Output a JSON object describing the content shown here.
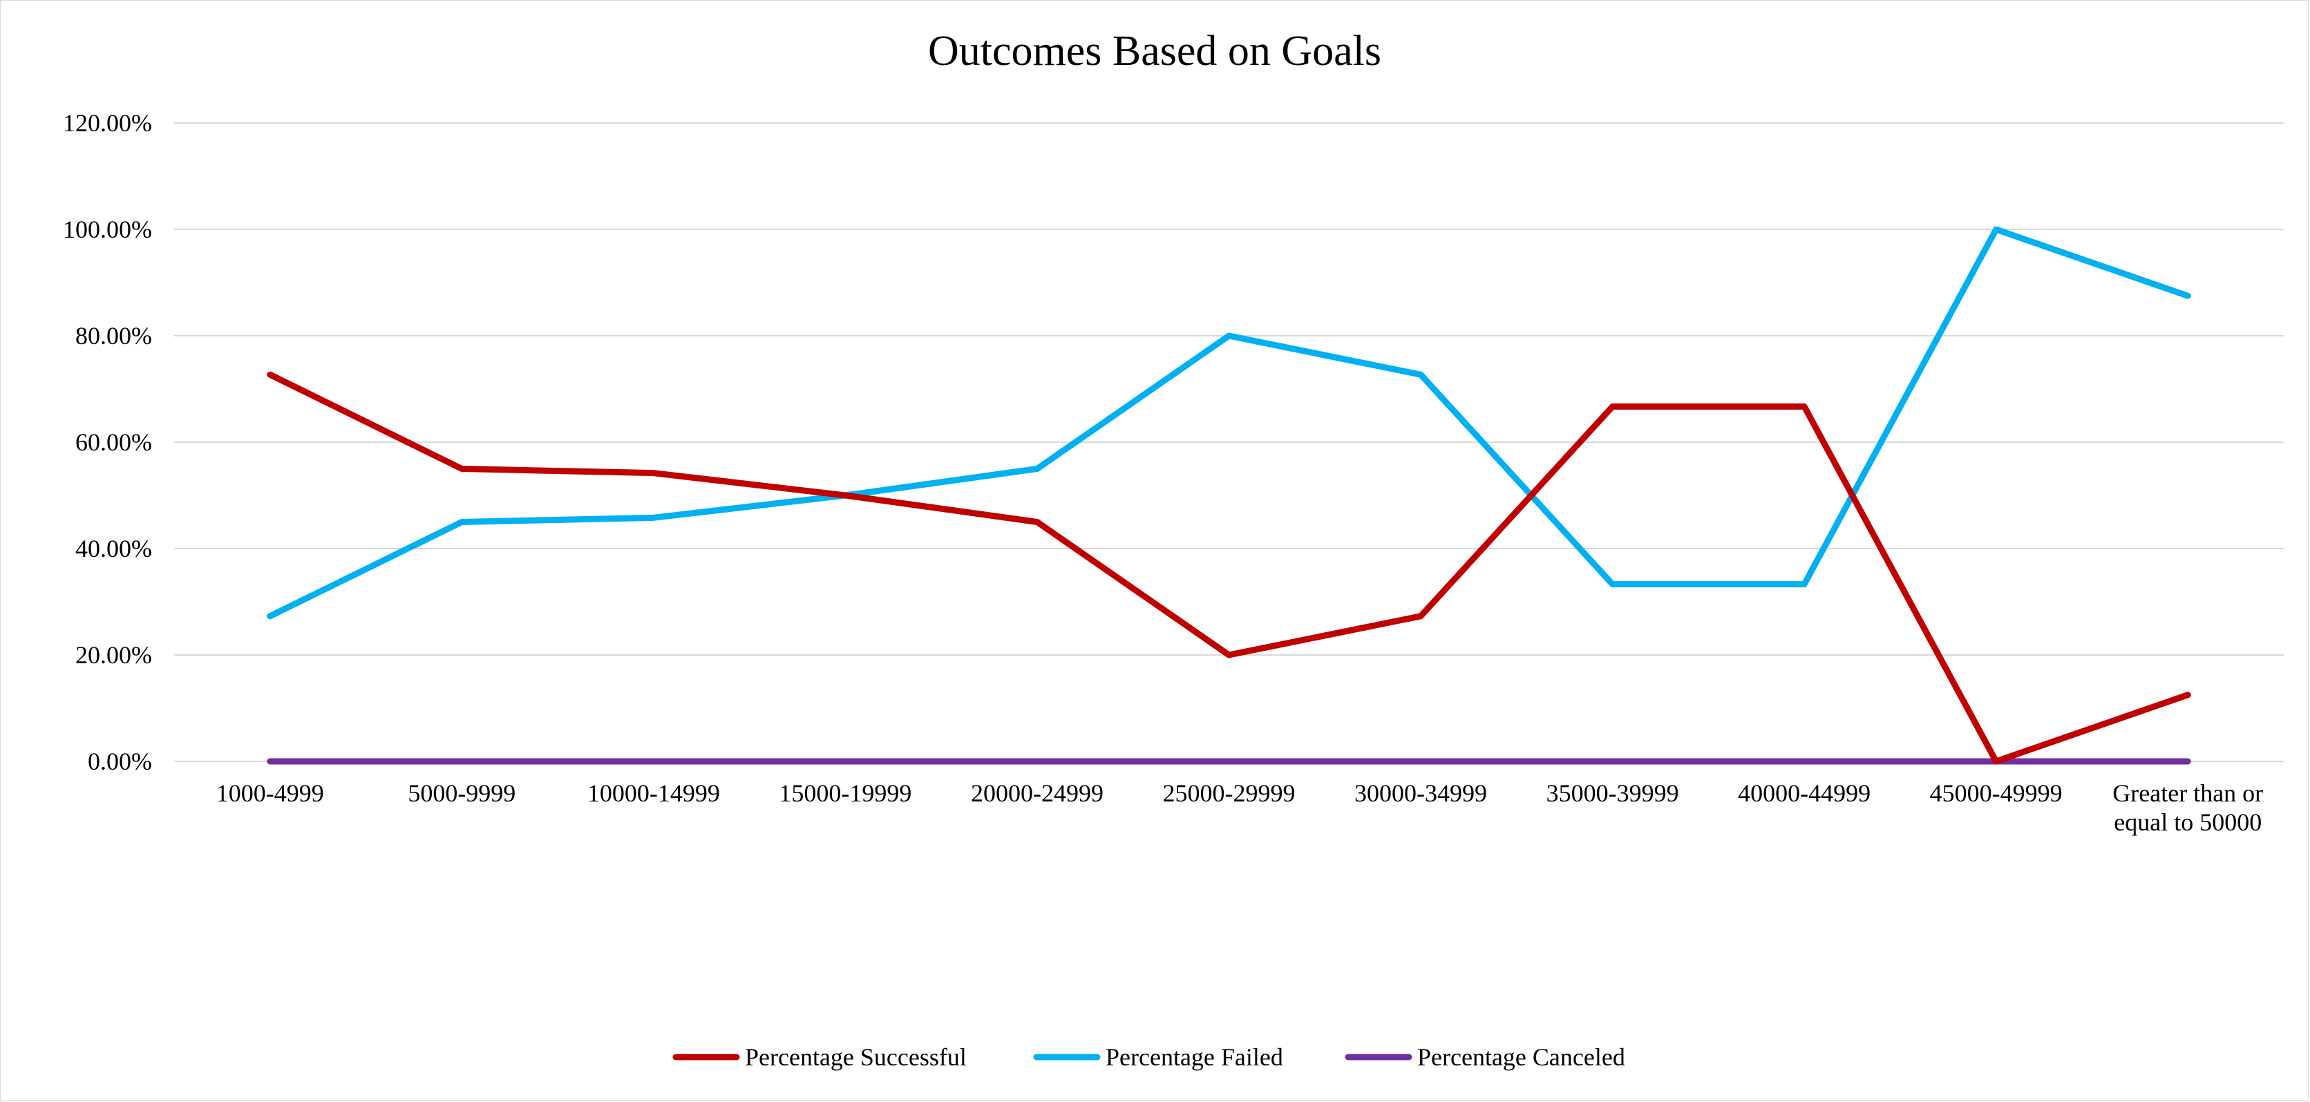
{
  "chart_data": {
    "type": "line",
    "title": "Outcomes Based on Goals",
    "xlabel": "",
    "ylabel": "",
    "categories": [
      "1000-4999",
      "5000-9999",
      "10000-14999",
      "15000-19999",
      "20000-24999",
      "25000-29999",
      "30000-34999",
      "35000-39999",
      "40000-44999",
      "45000-49999",
      "Greater than or equal to 50000"
    ],
    "y_ticks": [
      "0.00%",
      "20.00%",
      "40.00%",
      "60.00%",
      "80.00%",
      "100.00%",
      "120.00%"
    ],
    "ylim": [
      0,
      120
    ],
    "grid": true,
    "legend_position": "bottom",
    "series": [
      {
        "name": "Percentage Successful",
        "color": "#c00000",
        "values": [
          72.7,
          55.0,
          54.2,
          50.0,
          45.0,
          20.0,
          27.3,
          66.7,
          66.7,
          0.0,
          12.5
        ]
      },
      {
        "name": "Percentage Failed",
        "color": "#00b0f0",
        "values": [
          27.3,
          45.0,
          45.8,
          50.0,
          55.0,
          80.0,
          72.7,
          33.3,
          33.3,
          100.0,
          87.5
        ]
      },
      {
        "name": "Percentage Canceled",
        "color": "#7030a0",
        "values": [
          0,
          0,
          0,
          0,
          0,
          0,
          0,
          0,
          0,
          0,
          0
        ]
      }
    ]
  }
}
